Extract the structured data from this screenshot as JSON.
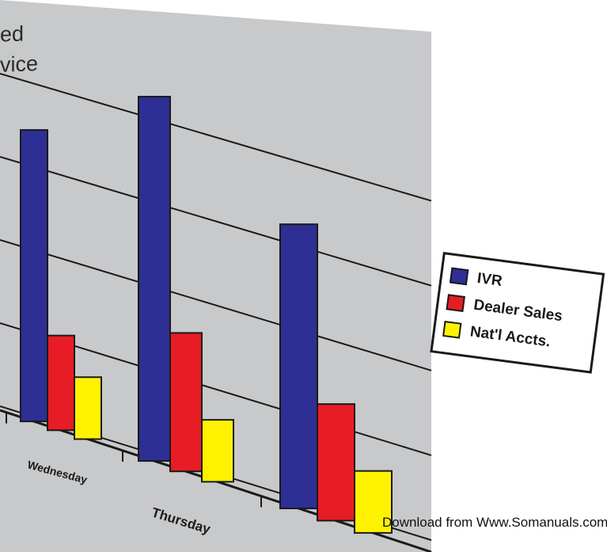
{
  "chart_data": {
    "type": "bar",
    "title_lines": [
      "ed",
      "vice"
    ],
    "categories": [
      "Wednesday",
      "Thursday",
      ""
    ],
    "series": [
      {
        "name": "IVR",
        "color": "#2e2f94",
        "values": [
          80,
          100,
          78
        ]
      },
      {
        "name": "Dealer Sales",
        "color": "#e81c24",
        "values": [
          26,
          38,
          32
        ]
      },
      {
        "name": "Nat'l Accts.",
        "color": "#fff200",
        "values": [
          17,
          17,
          17
        ]
      }
    ],
    "grid": true,
    "legend_position": "right",
    "colors": {
      "panel": "#c8c9cb",
      "gridline": "#1a1a1a"
    }
  },
  "watermark": "Download from Www.Somanuals.com"
}
